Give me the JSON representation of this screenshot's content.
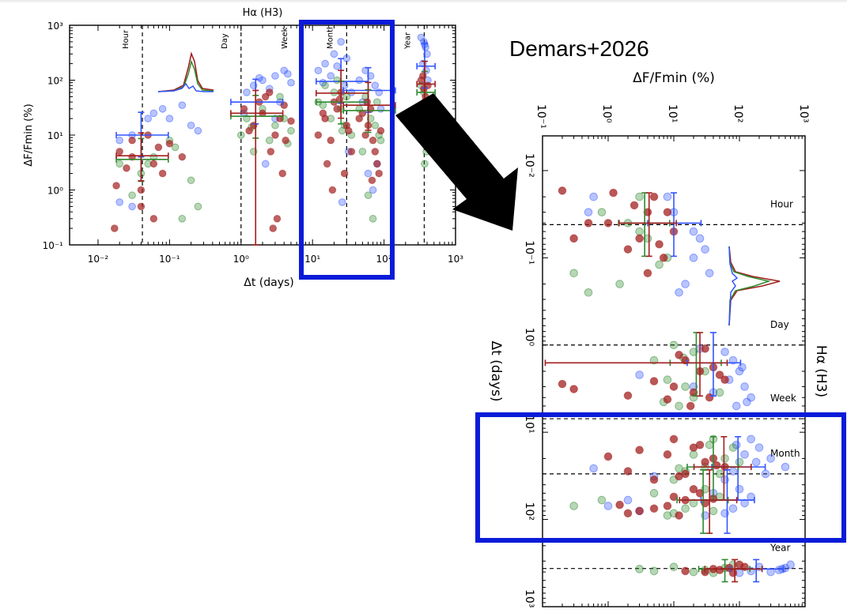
{
  "annotation": {
    "credit": "Demars+2026",
    "arrow_color": "#000000",
    "highlight_color": "#0a1bd9"
  },
  "series_colors": {
    "blue": "#3355ff",
    "green": "#2f8a2f",
    "red": "#a31f1f"
  },
  "chart_data": [
    {
      "type": "scatter",
      "title": "Hα (H3)",
      "xlabel": "Δt (days)",
      "ylabel": "ΔF/Fmin (%)",
      "xscale": "log",
      "yscale": "log",
      "xlim": [
        0.004,
        1000
      ],
      "ylim": [
        0.1,
        1000
      ],
      "x_ticks": [
        "10⁻²",
        "10⁻¹",
        "10⁰",
        "10¹",
        "10²",
        "10³"
      ],
      "y_ticks": [
        "10⁻¹",
        "10⁰",
        "10¹",
        "10²",
        "10³"
      ],
      "timescale_markers": [
        {
          "label": "Hour",
          "x": 0.0417
        },
        {
          "label": "Day",
          "x": 1
        },
        {
          "label": "Week",
          "x": 7
        },
        {
          "label": "Month",
          "x": 30
        },
        {
          "label": "Year",
          "x": 365
        }
      ],
      "groups": [
        {
          "x": 0.04,
          "median_y": {
            "blue": 10,
            "green": 3.6,
            "red": 4.2
          },
          "points": {
            "blue": [
              [
                0.02,
                8
              ],
              [
                0.03,
                10
              ],
              [
                0.05,
                20
              ],
              [
                0.06,
                25
              ],
              [
                0.08,
                30
              ],
              [
                0.1,
                20
              ],
              [
                0.15,
                35
              ],
              [
                0.2,
                15
              ],
              [
                0.25,
                12
              ],
              [
                0.02,
                0.6
              ],
              [
                0.03,
                0.5
              ]
            ],
            "green": [
              [
                0.02,
                3
              ],
              [
                0.04,
                2
              ],
              [
                0.06,
                4
              ],
              [
                0.1,
                8
              ],
              [
                0.2,
                1.5
              ],
              [
                0.25,
                0.5
              ],
              [
                0.15,
                0.3
              ],
              [
                0.03,
                0.8
              ],
              [
                0.05,
                3
              ],
              [
                0.12,
                6
              ]
            ],
            "red": [
              [
                0.017,
                0.2
              ],
              [
                0.018,
                1.2
              ],
              [
                0.02,
                5
              ],
              [
                0.025,
                2.5
              ],
              [
                0.03,
                8
              ],
              [
                0.04,
                1
              ],
              [
                0.05,
                10
              ],
              [
                0.06,
                3
              ],
              [
                0.07,
                6
              ],
              [
                0.08,
                2
              ],
              [
                0.1,
                7
              ],
              [
                0.15,
                4
              ],
              [
                0.04,
                0.5
              ],
              [
                0.06,
                0.3
              ],
              [
                0.03,
                4
              ]
            ]
          }
        },
        {
          "x": 1.6,
          "median_y": {
            "blue": 40,
            "green": 22,
            "red": 25
          },
          "points": {
            "blue": [
              [
                1.2,
                60
              ],
              [
                1.5,
                80
              ],
              [
                2,
                100
              ],
              [
                3,
                120
              ],
              [
                4,
                150
              ],
              [
                5,
                90
              ],
              [
                1.8,
                110
              ],
              [
                2.5,
                70
              ],
              [
                3.5,
                40
              ],
              [
                4.5,
                130
              ],
              [
                2.2,
                3
              ],
              [
                3,
                20
              ],
              [
                1.1,
                25
              ]
            ],
            "green": [
              [
                1,
                10
              ],
              [
                1.2,
                20
              ],
              [
                1.5,
                5
              ],
              [
                2,
                30
              ],
              [
                2.5,
                8
              ],
              [
                3,
                15
              ],
              [
                3.5,
                50
              ],
              [
                4,
                20
              ],
              [
                5,
                12
              ],
              [
                4.5,
                7
              ],
              [
                1.4,
                14
              ]
            ],
            "red": [
              [
                1.1,
                30
              ],
              [
                1.5,
                15
              ],
              [
                1.8,
                40
              ],
              [
                2,
                25
              ],
              [
                2.5,
                60
              ],
              [
                3,
                10
              ],
              [
                3.5,
                20
              ],
              [
                4,
                35
              ],
              [
                5,
                18
              ],
              [
                2.2,
                50
              ],
              [
                3.2,
                0.3
              ],
              [
                2.8,
                0.2
              ],
              [
                4.2,
                8
              ],
              [
                1.3,
                12
              ],
              [
                2.6,
                5
              ],
              [
                3.8,
                2
              ]
            ]
          }
        },
        {
          "x": 25,
          "median_y": {
            "blue": 95,
            "green": 40,
            "red": 58
          },
          "points": {
            "blue": [
              [
                12,
                150
              ],
              [
                15,
                200
              ],
              [
                20,
                300
              ],
              [
                25,
                500
              ],
              [
                30,
                250
              ],
              [
                18,
                120
              ],
              [
                14,
                90
              ],
              [
                22,
                180
              ],
              [
                28,
                80
              ],
              [
                35,
                60
              ],
              [
                26,
                0.6
              ],
              [
                32,
                5
              ]
            ],
            "green": [
              [
                12,
                40
              ],
              [
                15,
                80
              ],
              [
                20,
                60
              ],
              [
                25,
                30
              ],
              [
                30,
                50
              ],
              [
                18,
                20
              ],
              [
                22,
                100
              ],
              [
                28,
                15
              ],
              [
                35,
                10
              ],
              [
                14,
                35
              ],
              [
                26,
                12
              ]
            ],
            "red": [
              [
                12,
                10
              ],
              [
                15,
                20
              ],
              [
                20,
                40
              ],
              [
                25,
                60
              ],
              [
                30,
                15
              ],
              [
                18,
                8
              ],
              [
                22,
                30
              ],
              [
                28,
                2
              ],
              [
                35,
                5
              ],
              [
                14,
                25
              ],
              [
                16,
                3
              ],
              [
                24,
                45
              ],
              [
                32,
                12
              ],
              [
                19,
                1
              ]
            ]
          }
        },
        {
          "x": 60,
          "median_y": {
            "blue": 65,
            "green": 28,
            "red": 35
          },
          "points": {
            "blue": [
              [
                45,
                100
              ],
              [
                55,
                150
              ],
              [
                65,
                120
              ],
              [
                75,
                80
              ],
              [
                85,
                60
              ],
              [
                50,
                40
              ],
              [
                60,
                2
              ],
              [
                70,
                1
              ],
              [
                80,
                3
              ],
              [
                90,
                30
              ]
            ],
            "green": [
              [
                45,
                30
              ],
              [
                55,
                50
              ],
              [
                65,
                20
              ],
              [
                75,
                15
              ],
              [
                85,
                10
              ],
              [
                50,
                5
              ],
              [
                60,
                0.8
              ],
              [
                70,
                0.3
              ],
              [
                80,
                40
              ],
              [
                90,
                8
              ]
            ],
            "red": [
              [
                45,
                20
              ],
              [
                55,
                10
              ],
              [
                65,
                30
              ],
              [
                75,
                5
              ],
              [
                85,
                2
              ],
              [
                50,
                25
              ],
              [
                60,
                15
              ],
              [
                70,
                8
              ],
              [
                80,
                3
              ],
              [
                90,
                12
              ],
              [
                58,
                40
              ],
              [
                68,
                1.5
              ]
            ]
          }
        },
        {
          "x": 370,
          "median_y": {
            "blue": 180,
            "green": 60,
            "red": 85
          },
          "points": {
            "blue": [
              [
                330,
                600
              ],
              [
                360,
                500
              ],
              [
                380,
                400
              ],
              [
                400,
                300
              ],
              [
                350,
                200
              ],
              [
                390,
                150
              ],
              [
                410,
                100
              ],
              [
                370,
                450
              ]
            ],
            "green": [
              [
                330,
                80
              ],
              [
                360,
                60
              ],
              [
                380,
                30
              ],
              [
                400,
                20
              ],
              [
                350,
                10
              ],
              [
                390,
                5
              ],
              [
                410,
                40
              ],
              [
                370,
                3
              ]
            ],
            "red": [
              [
                330,
                100
              ],
              [
                360,
                70
              ],
              [
                380,
                50
              ],
              [
                400,
                30
              ],
              [
                350,
                120
              ],
              [
                390,
                15
              ],
              [
                410,
                80
              ],
              [
                370,
                40
              ]
            ]
          }
        }
      ]
    },
    {
      "type": "scatter",
      "title": "Hα (H3)",
      "xlabel": "ΔF/Fmin (%)",
      "ylabel": "Δt (days)",
      "xscale": "log",
      "yscale": "log",
      "orientation": "rotated 90° clockwise (time increases downward)",
      "xlim": [
        0.1,
        1000
      ],
      "ylim": [
        0.004,
        1000
      ],
      "x_ticks": [
        "10⁻¹",
        "10⁰",
        "10¹",
        "10²",
        "10³"
      ],
      "y_ticks": [
        "10⁻²",
        "10⁻¹",
        "10⁰",
        "10¹",
        "10²",
        "10³"
      ],
      "timescale_markers": [
        {
          "label": "Hour",
          "y": 0.0417
        },
        {
          "label": "Day",
          "y": 1
        },
        {
          "label": "Week",
          "y": 7
        },
        {
          "label": "Month",
          "y": 30
        },
        {
          "label": "Year",
          "y": 365
        }
      ]
    }
  ]
}
